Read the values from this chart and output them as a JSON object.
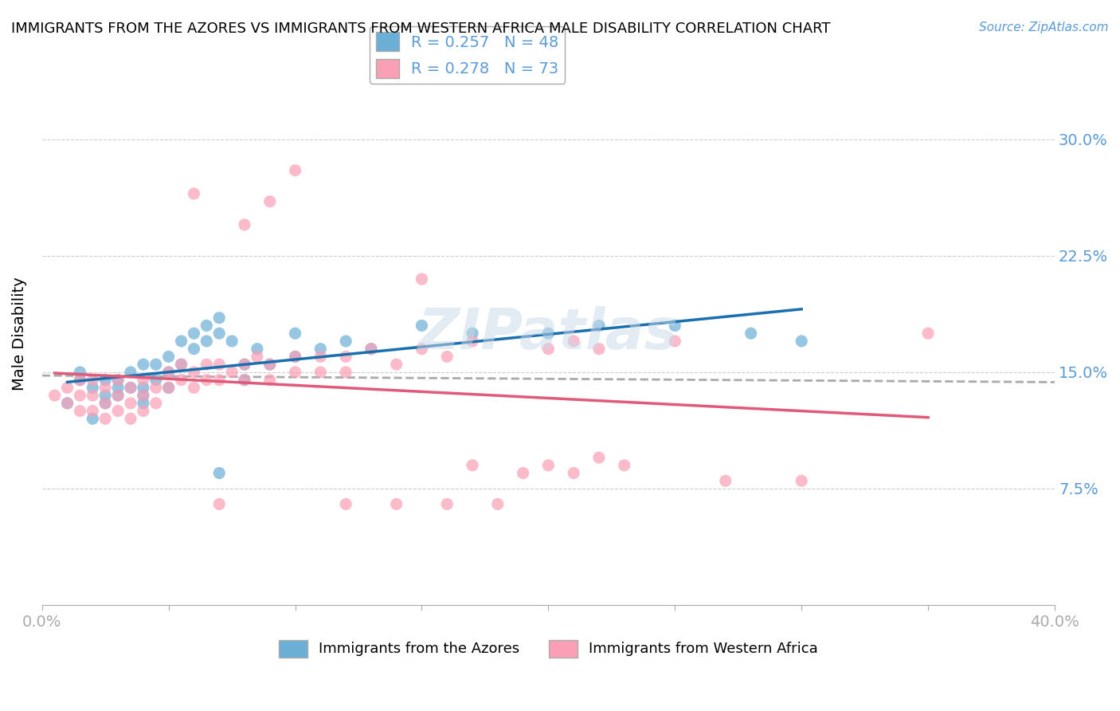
{
  "title": "IMMIGRANTS FROM THE AZORES VS IMMIGRANTS FROM WESTERN AFRICA MALE DISABILITY CORRELATION CHART",
  "source": "Source: ZipAtlas.com",
  "xlabel": "",
  "ylabel": "Male Disability",
  "xlim": [
    0.0,
    0.4
  ],
  "ylim": [
    0.0,
    0.35
  ],
  "yticks": [
    0.075,
    0.15,
    0.225,
    0.3
  ],
  "ytick_labels": [
    "7.5%",
    "15.0%",
    "22.5%",
    "30.0%"
  ],
  "xticks": [
    0.0,
    0.05,
    0.1,
    0.15,
    0.2,
    0.25,
    0.3,
    0.35,
    0.4
  ],
  "xtick_labels": [
    "0.0%",
    "",
    "",
    "",
    "",
    "",
    "",
    "",
    "40.0%"
  ],
  "legend_R1": "R = 0.257",
  "legend_N1": "N = 48",
  "legend_R2": "R = 0.278",
  "legend_N2": "N = 73",
  "color_azores": "#6baed6",
  "color_africa": "#fa9fb5",
  "color_line_azores": "#1a6faf",
  "color_line_africa": "#e05a7a",
  "color_trendline_dashed": "#aaaaaa",
  "watermark": "ZIPatlas",
  "azores_x": [
    0.01,
    0.015,
    0.015,
    0.02,
    0.02,
    0.025,
    0.025,
    0.025,
    0.03,
    0.03,
    0.03,
    0.035,
    0.035,
    0.04,
    0.04,
    0.04,
    0.04,
    0.045,
    0.045,
    0.05,
    0.05,
    0.05,
    0.055,
    0.055,
    0.06,
    0.06,
    0.065,
    0.065,
    0.07,
    0.07,
    0.075,
    0.08,
    0.08,
    0.085,
    0.09,
    0.1,
    0.1,
    0.11,
    0.12,
    0.13,
    0.15,
    0.17,
    0.2,
    0.22,
    0.25,
    0.28,
    0.3,
    0.07
  ],
  "azores_y": [
    0.13,
    0.145,
    0.15,
    0.14,
    0.12,
    0.145,
    0.135,
    0.13,
    0.145,
    0.14,
    0.135,
    0.15,
    0.14,
    0.155,
    0.14,
    0.135,
    0.13,
    0.155,
    0.145,
    0.16,
    0.15,
    0.14,
    0.17,
    0.155,
    0.175,
    0.165,
    0.18,
    0.17,
    0.185,
    0.175,
    0.17,
    0.155,
    0.145,
    0.165,
    0.155,
    0.175,
    0.16,
    0.165,
    0.17,
    0.165,
    0.18,
    0.175,
    0.175,
    0.18,
    0.18,
    0.175,
    0.17,
    0.085
  ],
  "africa_x": [
    0.005,
    0.01,
    0.01,
    0.015,
    0.015,
    0.015,
    0.02,
    0.02,
    0.02,
    0.025,
    0.025,
    0.025,
    0.03,
    0.03,
    0.03,
    0.035,
    0.035,
    0.035,
    0.04,
    0.04,
    0.04,
    0.045,
    0.045,
    0.05,
    0.05,
    0.055,
    0.055,
    0.06,
    0.06,
    0.065,
    0.065,
    0.07,
    0.07,
    0.075,
    0.08,
    0.08,
    0.085,
    0.09,
    0.09,
    0.1,
    0.1,
    0.11,
    0.11,
    0.12,
    0.12,
    0.13,
    0.14,
    0.15,
    0.16,
    0.17,
    0.2,
    0.21,
    0.22,
    0.25,
    0.35,
    0.06,
    0.08,
    0.09,
    0.1,
    0.15,
    0.17,
    0.19,
    0.2,
    0.21,
    0.23,
    0.07,
    0.12,
    0.14,
    0.16,
    0.18,
    0.22,
    0.27,
    0.3
  ],
  "africa_y": [
    0.135,
    0.14,
    0.13,
    0.145,
    0.135,
    0.125,
    0.145,
    0.135,
    0.125,
    0.14,
    0.13,
    0.12,
    0.145,
    0.135,
    0.125,
    0.14,
    0.13,
    0.12,
    0.145,
    0.135,
    0.125,
    0.14,
    0.13,
    0.15,
    0.14,
    0.155,
    0.145,
    0.15,
    0.14,
    0.155,
    0.145,
    0.155,
    0.145,
    0.15,
    0.155,
    0.145,
    0.16,
    0.155,
    0.145,
    0.16,
    0.15,
    0.16,
    0.15,
    0.16,
    0.15,
    0.165,
    0.155,
    0.165,
    0.16,
    0.17,
    0.165,
    0.17,
    0.165,
    0.17,
    0.175,
    0.265,
    0.245,
    0.26,
    0.28,
    0.21,
    0.09,
    0.085,
    0.09,
    0.085,
    0.09,
    0.065,
    0.065,
    0.065,
    0.065,
    0.065,
    0.095,
    0.08,
    0.08
  ]
}
